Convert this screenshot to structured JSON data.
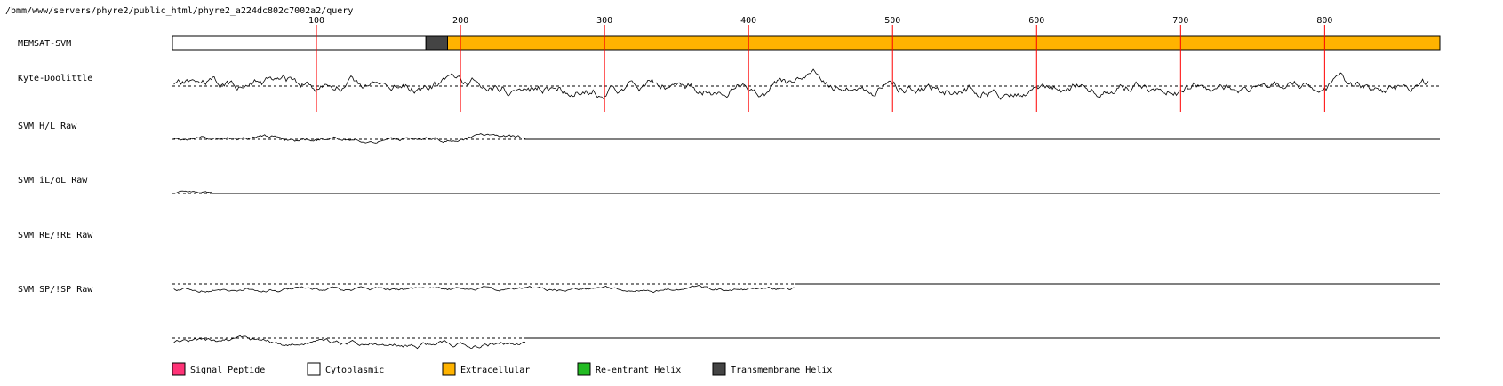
{
  "header": {
    "path": "/bmm/www/servers/phyre2/public_html/phyre2_a224dc802c7002a2/query"
  },
  "chart_data": {
    "type": "line",
    "x_ticks": [
      100,
      200,
      300,
      400,
      500,
      600,
      700,
      800
    ],
    "x_range": [
      0,
      880
    ],
    "memsat": {
      "label": "MEMSAT-SVM",
      "segments": [
        {
          "start": 1,
          "end": 176,
          "type": "Cytoplasmic"
        },
        {
          "start": 177,
          "end": 191,
          "type": "Transmembrane Helix"
        },
        {
          "start": 192,
          "end": 880,
          "type": "Extracellular"
        }
      ]
    },
    "tracks": [
      {
        "label": "Kyte-Doolittle",
        "range": [
          1,
          872
        ],
        "seed": 11,
        "amp": 0.55,
        "flat": false
      },
      {
        "label": "SVM H/L Raw",
        "range": [
          1,
          245
        ],
        "seed": 23,
        "amp": 0.35,
        "flat": true
      },
      {
        "label": "SVM iL/oL Raw",
        "range": [
          1,
          27
        ],
        "seed": 37,
        "amp": 0.25,
        "flat": true
      },
      {
        "label": "SVM RE/!RE Raw",
        "range": [
          1,
          432
        ],
        "seed": 41,
        "amp": 0.3,
        "flat": true
      },
      {
        "label": "SVM SP/!SP Raw",
        "range": [
          1,
          245
        ],
        "seed": 53,
        "amp": 0.45,
        "flat": true
      }
    ],
    "legend": [
      {
        "label": "Signal Peptide",
        "color": "#ff3377"
      },
      {
        "label": "Cytoplasmic",
        "color": "#ffffff"
      },
      {
        "label": "Extracellular",
        "color": "#ffb300"
      },
      {
        "label": "Re-entrant Helix",
        "color": "#22bb22"
      },
      {
        "label": "Transmembrane Helix",
        "color": "#444444"
      }
    ],
    "colors": {
      "tick_line": "#ff0000",
      "tm": "#444444",
      "extra": "#ffb300",
      "cyto": "#ffffff"
    }
  }
}
